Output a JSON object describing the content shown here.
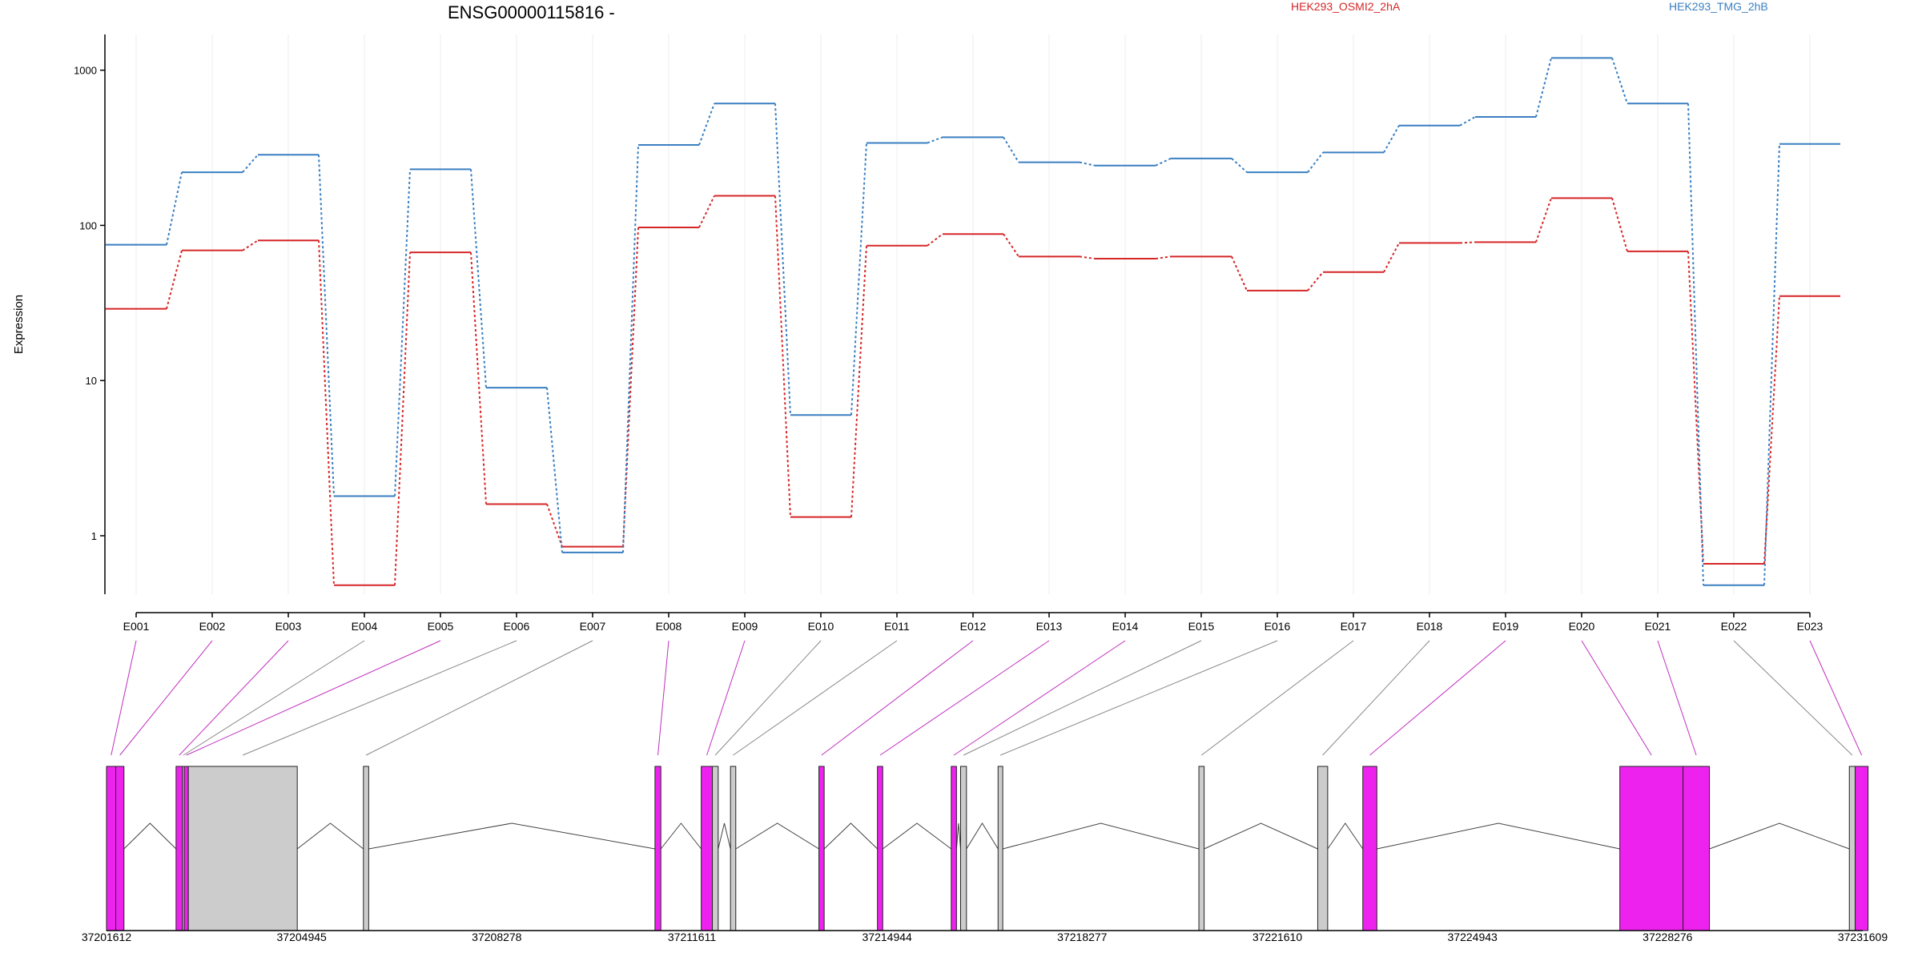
{
  "chart_data": {
    "type": "line",
    "title": "ENSG00000115816 -",
    "ylabel": "Expression",
    "yscale": "log",
    "ylim": [
      0.42,
      1700
    ],
    "yticks": [
      1,
      10,
      100,
      1000
    ],
    "ytick_labels": [
      "1",
      "10",
      "100",
      "1000"
    ],
    "grid": "vertical",
    "legend_placement": "top",
    "categories": [
      "E001",
      "E002",
      "E003",
      "E004",
      "E005",
      "E006",
      "E007",
      "E008",
      "E009",
      "E010",
      "E011",
      "E012",
      "E013",
      "E014",
      "E015",
      "E016",
      "E017",
      "E018",
      "E019",
      "E020",
      "E021",
      "E022",
      "E023"
    ],
    "series": [
      {
        "name": "HEK293_OSMI2_2hA",
        "color": "#d62728",
        "values": [
          29,
          69,
          80,
          0.48,
          67,
          1.6,
          0.85,
          97,
          155,
          1.32,
          74,
          88,
          63,
          61,
          63,
          38,
          50,
          77,
          78,
          150,
          68,
          0.66,
          35
        ]
      },
      {
        "name": "HEK293_TMG_2hB",
        "color": "#3a7fc1",
        "values": [
          75,
          220,
          285,
          1.8,
          230,
          9,
          0.78,
          330,
          610,
          6,
          340,
          370,
          255,
          243,
          270,
          220,
          295,
          440,
          500,
          1200,
          610,
          0.48,
          335
        ]
      }
    ],
    "gene_model": {
      "coordinate_ticks": [
        "37201612",
        "37204945",
        "37208278",
        "37211611",
        "37214944",
        "37218277",
        "37221610",
        "37224943",
        "37228276",
        "37231609"
      ],
      "exon_color": "#ee22ee",
      "inactive_color": "#cccccc",
      "exons": [
        {
          "id": "E001",
          "start": 37201612,
          "end": 37201770,
          "highlight": true
        },
        {
          "id": "E002",
          "start": 37201770,
          "end": 37201910,
          "highlight": true
        },
        {
          "id": "E003",
          "start": 37202800,
          "end": 37202910,
          "highlight": true
        },
        {
          "id": "E004",
          "start": 37202910,
          "end": 37202940,
          "highlight": false
        },
        {
          "id": "E005",
          "start": 37202940,
          "end": 37203010,
          "highlight": true
        },
        {
          "id": "E006",
          "start": 37203010,
          "end": 37204870,
          "highlight": false
        },
        {
          "id": "E007",
          "start": 37206000,
          "end": 37206090,
          "highlight": false
        },
        {
          "id": "E008",
          "start": 37210980,
          "end": 37211080,
          "highlight": true
        },
        {
          "id": "E009",
          "start": 37211770,
          "end": 37211960,
          "highlight": true
        },
        {
          "id": "E010",
          "start": 37211960,
          "end": 37212060,
          "highlight": false
        },
        {
          "id": "E011",
          "start": 37212270,
          "end": 37212360,
          "highlight": false
        },
        {
          "id": "E012",
          "start": 37213780,
          "end": 37213870,
          "highlight": true
        },
        {
          "id": "E013",
          "start": 37214780,
          "end": 37214870,
          "highlight": true
        },
        {
          "id": "E014",
          "start": 37216040,
          "end": 37216130,
          "highlight": true
        },
        {
          "id": "E015",
          "start": 37216200,
          "end": 37216300,
          "highlight": false
        },
        {
          "id": "E016",
          "start": 37216840,
          "end": 37216920,
          "highlight": false
        },
        {
          "id": "E017",
          "start": 37220270,
          "end": 37220360,
          "highlight": false
        },
        {
          "id": "E018",
          "start": 37222300,
          "end": 37222470,
          "highlight": false
        },
        {
          "id": "E019",
          "start": 37223070,
          "end": 37223310,
          "highlight": true
        },
        {
          "id": "E020",
          "start": 37227460,
          "end": 37228540,
          "highlight": true
        },
        {
          "id": "E021",
          "start": 37228540,
          "end": 37228990,
          "highlight": true
        },
        {
          "id": "E022",
          "start": 37231380,
          "end": 37231480,
          "highlight": false
        },
        {
          "id": "E023",
          "start": 37231480,
          "end": 37231700,
          "highlight": true
        }
      ]
    }
  }
}
